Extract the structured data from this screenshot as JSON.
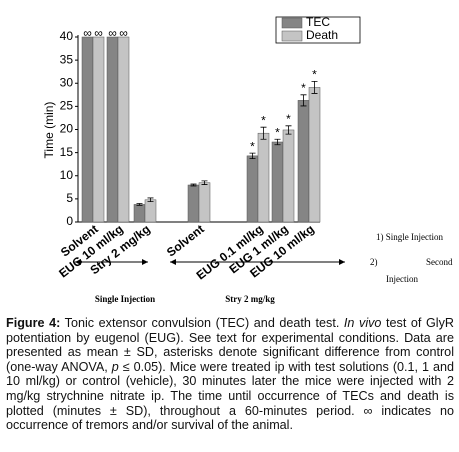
{
  "chart_data": {
    "type": "bar",
    "ylabel": "Time (min)",
    "categories": [
      "Solvent",
      "EUG 10 ml/kg",
      "Stry 2 mg/kg",
      "Solvent",
      "EUG 0.1 ml/kg",
      "EUG 1 ml/kg",
      "EUG 10 ml/kg"
    ],
    "series": [
      {
        "name": "TEC",
        "color": "#858585",
        "values": [
          null,
          null,
          3.8,
          8,
          14.3,
          17.3,
          26.3
        ],
        "value_labels": [
          "∞",
          "∞",
          null,
          null,
          null,
          null,
          null
        ],
        "errors": [
          null,
          null,
          0.2,
          0.2,
          0.6,
          0.6,
          1.2
        ],
        "markers": [
          null,
          null,
          null,
          null,
          "*",
          "*",
          "*"
        ]
      },
      {
        "name": "Death",
        "color": "#c4c4c4",
        "values": [
          null,
          null,
          4.8,
          8.5,
          19.2,
          19.9,
          29.1
        ],
        "value_labels": [
          "∞",
          "∞",
          null,
          null,
          null,
          null,
          null
        ],
        "errors": [
          null,
          null,
          0.4,
          0.4,
          1.3,
          0.9,
          1.3
        ],
        "markers": [
          null,
          null,
          null,
          null,
          "*",
          "*",
          "*"
        ]
      }
    ],
    "ylim": [
      0,
      40
    ],
    "yticks": [
      0,
      5,
      10,
      15,
      20,
      25,
      30,
      35,
      40
    ],
    "legend": "top-right",
    "groups": [
      "Single Injection",
      "Stry 2 mg/kg"
    ],
    "notes": [
      "1) Single Injection",
      "2)",
      "Second",
      "Injection"
    ]
  },
  "caption": {
    "label": "Figure 4:",
    "parts": [
      " Tonic extensor convulsion (TEC) and death test. ",
      "In vivo",
      " test of GlyR potentiation by eugenol (EUG). See text for experimental conditions. Data are presented as mean ± SD, asterisks denote significant difference from control (one-way ANOVA, ",
      "p",
      " ≤ 0.05). Mice were treated ip with test solutions (0.1, 1 and 10 ml/kg) or control (vehicle), 30 minutes later the mice were injected with 2 mg/kg strychnine nitrate ip. The time until occurrence of TECs and death is plotted (minutes ± SD), throughout a 60-minutes period. ∞ indicates no occurrence of tremors and/or survival of the animal."
    ]
  }
}
